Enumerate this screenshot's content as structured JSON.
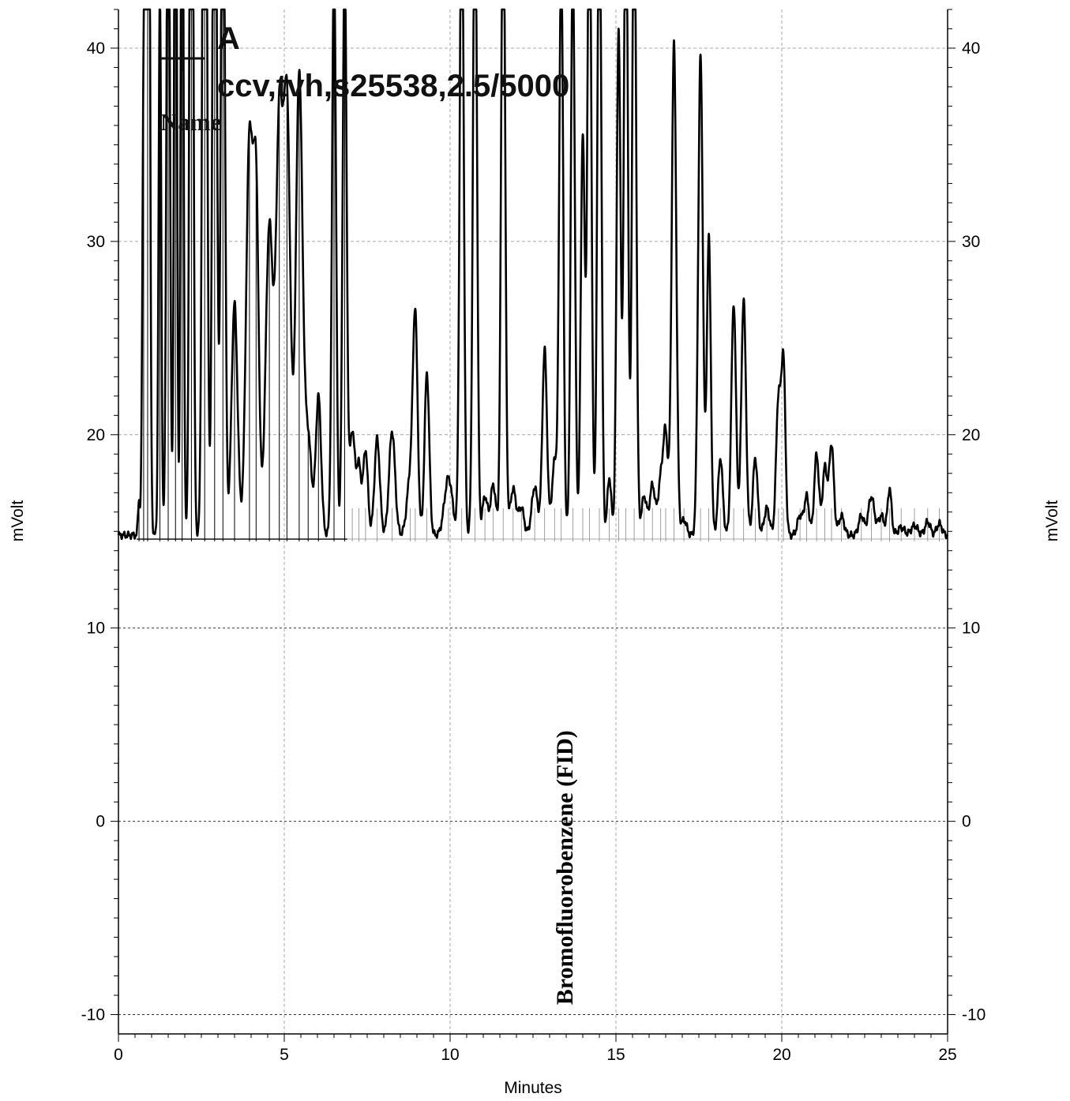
{
  "chart_data": {
    "type": "line",
    "title": "",
    "xlabel": "Minutes",
    "ylabel_left": "mVolt",
    "ylabel_right": "mVolt",
    "xlim": [
      0,
      25
    ],
    "ylim": [
      -11,
      42
    ],
    "x_ticks": [
      0,
      5,
      10,
      15,
      20,
      25
    ],
    "y_ticks": [
      -10,
      0,
      10,
      20,
      30,
      40
    ],
    "x_tick_labels": [
      "0",
      "5",
      "10",
      "15",
      "20",
      "25"
    ],
    "y_tick_labels": [
      "-10",
      "0",
      "10",
      "20",
      "30",
      "40"
    ],
    "grid": true,
    "baseline_mvolt": 14.6,
    "baseline_split_minutes": 6.9,
    "legend": {
      "placement": "top-left",
      "letter": "A",
      "sample": "ccv,tvh,s25538,2.5/5000",
      "column_label": "Name"
    },
    "annotations": [
      {
        "text": "Bromofluorobenzene (FID)",
        "x_minutes": 13.4,
        "y_mvolt": -9.5,
        "rotation": -90
      }
    ],
    "series": [
      {
        "type": "peaks",
        "baseline": 14.8,
        "peaks": [
          [
            0.62,
            0.03,
            1.8
          ],
          [
            0.76,
            0.04,
            22
          ],
          [
            0.88,
            0.05,
            80
          ],
          [
            1.25,
            0.04,
            28
          ],
          [
            1.5,
            0.05,
            40
          ],
          [
            1.72,
            0.04,
            45
          ],
          [
            1.92,
            0.04,
            45
          ],
          [
            2.2,
            0.05,
            60
          ],
          [
            2.6,
            0.06,
            60
          ],
          [
            2.9,
            0.06,
            48
          ],
          [
            3.15,
            0.06,
            40
          ],
          [
            3.5,
            0.09,
            12
          ],
          [
            3.95,
            0.1,
            20.5
          ],
          [
            4.15,
            0.08,
            17
          ],
          [
            4.55,
            0.11,
            16
          ],
          [
            4.85,
            0.1,
            21
          ],
          [
            5.08,
            0.1,
            22
          ],
          [
            5.45,
            0.1,
            24
          ],
          [
            5.72,
            0.1,
            5
          ],
          [
            6.03,
            0.08,
            7.2
          ],
          [
            6.5,
            0.06,
            30
          ],
          [
            6.82,
            0.06,
            30
          ],
          [
            7.05,
            0.08,
            5.4
          ],
          [
            7.25,
            0.07,
            3.5
          ],
          [
            7.45,
            0.07,
            4.4
          ],
          [
            7.8,
            0.08,
            5
          ],
          [
            8.25,
            0.09,
            5.4
          ],
          [
            8.8,
            0.1,
            3
          ],
          [
            8.95,
            0.07,
            10.8
          ],
          [
            9.3,
            0.07,
            8.4
          ],
          [
            9.95,
            0.12,
            3
          ],
          [
            10.35,
            0.06,
            35
          ],
          [
            10.75,
            0.06,
            35
          ],
          [
            11.05,
            0.08,
            2
          ],
          [
            11.3,
            0.08,
            2.6
          ],
          [
            11.6,
            0.06,
            35
          ],
          [
            11.9,
            0.09,
            2.4
          ],
          [
            12.15,
            0.08,
            1.4
          ],
          [
            12.55,
            0.09,
            2.5
          ],
          [
            12.85,
            0.07,
            9.6
          ],
          [
            13.15,
            0.08,
            3.8
          ],
          [
            13.35,
            0.06,
            30
          ],
          [
            13.7,
            0.06,
            30
          ],
          [
            14.0,
            0.06,
            20.8
          ],
          [
            14.2,
            0.06,
            35
          ],
          [
            14.5,
            0.06,
            35
          ],
          [
            14.8,
            0.06,
            3
          ],
          [
            15.08,
            0.06,
            26.2
          ],
          [
            15.3,
            0.06,
            35
          ],
          [
            15.55,
            0.06,
            35
          ],
          [
            15.85,
            0.08,
            2
          ],
          [
            16.1,
            0.08,
            2.6
          ],
          [
            16.35,
            0.08,
            2.8
          ],
          [
            16.5,
            0.07,
            5
          ],
          [
            16.75,
            0.07,
            25.4
          ],
          [
            17.05,
            0.08,
            0.8
          ],
          [
            17.55,
            0.07,
            24.8
          ],
          [
            17.8,
            0.06,
            15.4
          ],
          [
            18.15,
            0.07,
            4
          ],
          [
            18.55,
            0.07,
            12
          ],
          [
            18.85,
            0.07,
            12.2
          ],
          [
            19.2,
            0.07,
            4
          ],
          [
            19.55,
            0.08,
            1.4
          ],
          [
            19.9,
            0.07,
            7.1
          ],
          [
            20.05,
            0.06,
            8.8
          ],
          [
            20.55,
            0.08,
            1
          ],
          [
            20.75,
            0.07,
            2
          ],
          [
            21.05,
            0.07,
            4.2
          ],
          [
            21.3,
            0.07,
            3.5
          ],
          [
            21.5,
            0.07,
            4.7
          ],
          [
            21.8,
            0.08,
            1
          ],
          [
            22.4,
            0.08,
            1
          ],
          [
            22.7,
            0.09,
            2
          ],
          [
            23.0,
            0.09,
            1
          ],
          [
            23.25,
            0.06,
            2.4
          ],
          [
            23.6,
            0.1,
            0.4
          ],
          [
            24.0,
            0.1,
            0.5
          ],
          [
            24.4,
            0.08,
            0.7
          ],
          [
            24.75,
            0.08,
            0.6
          ]
        ]
      }
    ]
  }
}
